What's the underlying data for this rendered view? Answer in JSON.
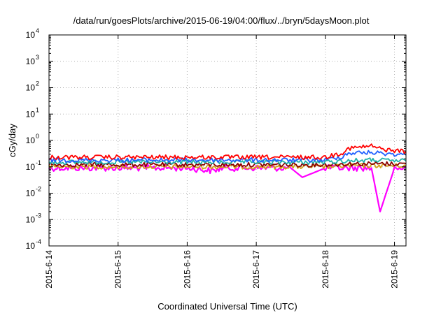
{
  "chart_data": {
    "type": "line",
    "title": "/data/run/goesPlots/archive/2015-06-19/04:00/flux/../bryn/5daysMoon.plot",
    "xlabel": "Coordinated Universal Time (UTC)",
    "ylabel": "cGy/day",
    "x_scale": "time",
    "y_scale": "log",
    "xlim": [
      "2015-06-14T00:00",
      "2015-06-19T04:00"
    ],
    "ylim": [
      0.0001,
      10000
    ],
    "x_ticks": [
      "2015-6-14",
      "2015-6-15",
      "2015-6-16",
      "2015-6-17",
      "2015-6-18",
      "2015-6-19"
    ],
    "y_ticks": [
      {
        "base": "10",
        "exp": "4",
        "value": 10000
      },
      {
        "base": "10",
        "exp": "3",
        "value": 1000
      },
      {
        "base": "10",
        "exp": "2",
        "value": 100
      },
      {
        "base": "10",
        "exp": "1",
        "value": 10
      },
      {
        "base": "10",
        "exp": "0",
        "value": 1
      },
      {
        "base": "10",
        "exp": "-1",
        "value": 0.1
      },
      {
        "base": "10",
        "exp": "-2",
        "value": 0.01
      },
      {
        "base": "10",
        "exp": "-3",
        "value": 0.001
      },
      {
        "base": "10",
        "exp": "-4",
        "value": 0.0001
      }
    ],
    "grid": true,
    "legend": "none",
    "series": [
      {
        "color": "#ff00ff",
        "x": [
          "2015-06-14T00:00",
          "2015-06-14T12:00",
          "2015-06-15T00:00",
          "2015-06-15T12:00",
          "2015-06-16T00:00",
          "2015-06-16T09:00",
          "2015-06-16T12:00",
          "2015-06-17T00:00",
          "2015-06-17T12:00",
          "2015-06-17T16:00",
          "2015-06-18T00:00",
          "2015-06-18T12:00",
          "2015-06-18T16:00",
          "2015-06-18T19:00",
          "2015-06-19T00:00",
          "2015-06-19T04:00"
        ],
        "y": [
          0.09,
          0.09,
          0.09,
          0.09,
          0.09,
          0.07,
          0.09,
          0.09,
          0.09,
          0.04,
          0.09,
          0.09,
          0.09,
          0.002,
          0.09,
          0.09
        ]
      },
      {
        "color": "#d4a017",
        "x": [
          "2015-06-14T00:00",
          "2015-06-15T00:00",
          "2015-06-16T00:00",
          "2015-06-17T00:00",
          "2015-06-18T00:00",
          "2015-06-18T08:00",
          "2015-06-19T00:00",
          "2015-06-19T04:00"
        ],
        "y": [
          0.1,
          0.1,
          0.1,
          0.1,
          0.1,
          0.11,
          0.11,
          0.11
        ]
      },
      {
        "color": "#8b0000",
        "x": [
          "2015-06-14T00:00",
          "2015-06-15T00:00",
          "2015-06-16T00:00",
          "2015-06-17T00:00",
          "2015-06-18T00:00",
          "2015-06-18T08:00",
          "2015-06-19T00:00",
          "2015-06-19T04:00"
        ],
        "y": [
          0.12,
          0.12,
          0.12,
          0.12,
          0.12,
          0.13,
          0.13,
          0.13
        ]
      },
      {
        "color": "#20b2aa",
        "x": [
          "2015-06-14T00:00",
          "2015-06-15T00:00",
          "2015-06-16T00:00",
          "2015-06-17T00:00",
          "2015-06-18T00:00",
          "2015-06-18T08:00",
          "2015-06-18T16:00",
          "2015-06-19T00:00",
          "2015-06-19T04:00"
        ],
        "y": [
          0.15,
          0.15,
          0.15,
          0.15,
          0.15,
          0.17,
          0.18,
          0.17,
          0.17
        ]
      },
      {
        "color": "#1f5fff",
        "x": [
          "2015-06-14T00:00",
          "2015-06-15T00:00",
          "2015-06-16T00:00",
          "2015-06-17T00:00",
          "2015-06-18T00:00",
          "2015-06-18T06:00",
          "2015-06-18T08:00",
          "2015-06-18T16:00",
          "2015-06-19T00:00",
          "2015-06-19T04:00"
        ],
        "y": [
          0.18,
          0.18,
          0.18,
          0.18,
          0.18,
          0.25,
          0.33,
          0.35,
          0.3,
          0.28
        ]
      },
      {
        "color": "#ff0000",
        "x": [
          "2015-06-14T00:00",
          "2015-06-15T00:00",
          "2015-06-16T00:00",
          "2015-06-17T00:00",
          "2015-06-18T00:00",
          "2015-06-18T06:00",
          "2015-06-18T08:00",
          "2015-06-18T12:00",
          "2015-06-18T16:00",
          "2015-06-18T20:00",
          "2015-06-19T00:00",
          "2015-06-19T04:00"
        ],
        "y": [
          0.23,
          0.23,
          0.23,
          0.23,
          0.23,
          0.35,
          0.5,
          0.55,
          0.62,
          0.45,
          0.42,
          0.38
        ]
      }
    ]
  }
}
